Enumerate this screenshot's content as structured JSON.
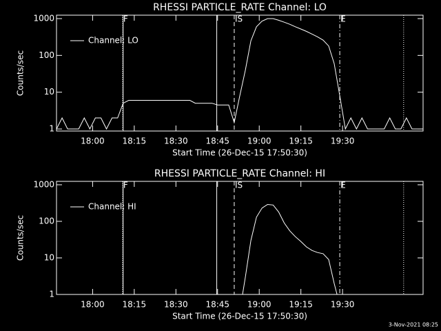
{
  "chart_data": [
    {
      "type": "line",
      "title": "RHESSI PARTICLE_RATE Channel: LO",
      "xlabel": "Start Time (26-Dec-15 17:50:30)",
      "ylabel": "Counts/sec",
      "log_y": true,
      "legend": "upper left",
      "xlim": [
        1067,
        1199
      ],
      "ylim": [
        0.88,
        1240
      ],
      "xticks": [
        {
          "value": 1080,
          "label": "18:00"
        },
        {
          "value": 1095,
          "label": "18:15"
        },
        {
          "value": 1110,
          "label": "18:30"
        },
        {
          "value": 1125,
          "label": "18:45"
        },
        {
          "value": 1140,
          "label": "19:00"
        },
        {
          "value": 1155,
          "label": "19:15"
        },
        {
          "value": 1170,
          "label": "19:30"
        }
      ],
      "yticks": [
        1,
        10,
        100,
        1000
      ],
      "markers": [
        {
          "x": 1091,
          "style": "solid"
        },
        {
          "x": 1090.8,
          "label": "F",
          "style": "dotted"
        },
        {
          "x": 1124.7,
          "style": "solid"
        },
        {
          "x": 1131,
          "label": "IS",
          "style": "dashed"
        },
        {
          "x": 1169,
          "label": "E",
          "style": "dashdot"
        },
        {
          "x": 1192,
          "style": "dotted"
        }
      ],
      "series": [
        {
          "name": "Channel: LO",
          "color": "#ffffff",
          "x": [
            1067,
            1069,
            1071,
            1073,
            1075,
            1077,
            1079,
            1081,
            1083,
            1085,
            1087,
            1089,
            1091,
            1093,
            1095,
            1097,
            1099,
            1101,
            1103,
            1105,
            1107,
            1109,
            1111,
            1113,
            1115,
            1117,
            1119,
            1121,
            1123,
            1125,
            1127,
            1129,
            1131,
            1133,
            1135,
            1137,
            1139,
            1141,
            1143,
            1145,
            1147,
            1149,
            1151,
            1153,
            1155,
            1157,
            1159,
            1161,
            1163,
            1165,
            1167,
            1169,
            1171,
            1173,
            1175,
            1177,
            1179,
            1181,
            1183,
            1185,
            1187,
            1189,
            1191,
            1193,
            1195,
            1197,
            1199
          ],
          "values": [
            1,
            2,
            1,
            1,
            1,
            2,
            1,
            2,
            2,
            1,
            2,
            2,
            5,
            6,
            6,
            6,
            6,
            6,
            6,
            6,
            6,
            6,
            6,
            6,
            6,
            5,
            5,
            5,
            5,
            4.5,
            4.5,
            4.5,
            1.5,
            8,
            40,
            250,
            600,
            850,
            1000,
            1000,
            900,
            800,
            700,
            600,
            520,
            450,
            380,
            320,
            260,
            180,
            60,
            8,
            1,
            2,
            1,
            2,
            1,
            1,
            1,
            1,
            2,
            1,
            1,
            2,
            1,
            1,
            1
          ]
        }
      ]
    },
    {
      "type": "line",
      "title": "RHESSI PARTICLE_RATE Channel: HI",
      "xlabel": "Start Time (26-Dec-15 17:50:30)",
      "ylabel": "Counts/sec",
      "log_y": true,
      "legend": "upper left",
      "xlim": [
        1067,
        1199
      ],
      "ylim": [
        1,
        1240
      ],
      "xticks": [
        {
          "value": 1080,
          "label": "18:00"
        },
        {
          "value": 1095,
          "label": "18:15"
        },
        {
          "value": 1110,
          "label": "18:30"
        },
        {
          "value": 1125,
          "label": "18:45"
        },
        {
          "value": 1140,
          "label": "19:00"
        },
        {
          "value": 1155,
          "label": "19:15"
        },
        {
          "value": 1170,
          "label": "19:30"
        }
      ],
      "yticks": [
        1,
        10,
        100,
        1000
      ],
      "markers": [
        {
          "x": 1091,
          "style": "solid"
        },
        {
          "x": 1090.8,
          "label": "F",
          "style": "dotted"
        },
        {
          "x": 1124.7,
          "style": "solid"
        },
        {
          "x": 1131,
          "label": "IS",
          "style": "dashed"
        },
        {
          "x": 1169,
          "label": "E",
          "style": "dashdot"
        },
        {
          "x": 1192,
          "style": "dotted"
        }
      ],
      "series": [
        {
          "name": "Channel: HI",
          "color": "#ffffff",
          "x": [
            1134,
            1135,
            1137,
            1139,
            1141,
            1143,
            1145,
            1147,
            1149,
            1151,
            1153,
            1155,
            1157,
            1159,
            1161,
            1163,
            1165,
            1167,
            1168
          ],
          "values": [
            1,
            3,
            30,
            130,
            230,
            290,
            280,
            180,
            90,
            55,
            38,
            28,
            20,
            16,
            14,
            13,
            9,
            2,
            1
          ]
        }
      ]
    }
  ],
  "footer": "3-Nov-2021 08:25"
}
